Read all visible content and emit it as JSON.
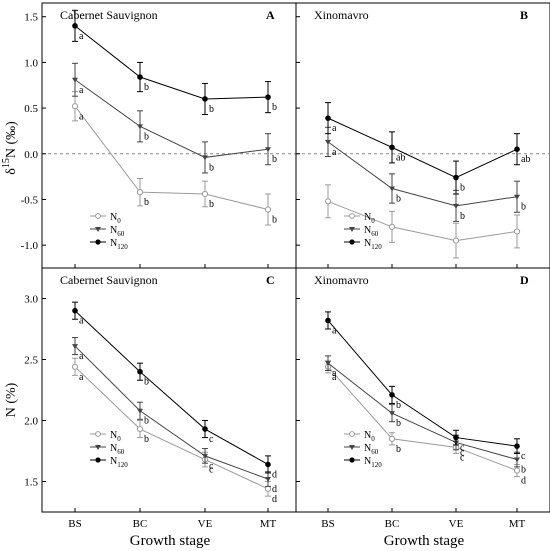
{
  "figure": {
    "y_top_label_main": "δ",
    "y_top_label_sup": "15",
    "y_top_label_rest": "N (‰)",
    "y_bottom_label": "N (%)",
    "x_label_left": "Growth stage",
    "x_label_right": "Growth stage",
    "legend": [
      {
        "key": "N0",
        "base": "N",
        "sub": "0"
      },
      {
        "key": "N60",
        "base": "N",
        "sub": "60"
      },
      {
        "key": "N120",
        "base": "N",
        "sub": "120"
      }
    ]
  },
  "colors": {
    "N0": "#9a9a9a",
    "N60": "#444444",
    "N120": "#000000"
  },
  "chart_data": [
    {
      "id": "A",
      "panel_letter": "A",
      "cultivar": "Cabernet Sauvignon",
      "type": "line",
      "categories": [
        "BS",
        "BC",
        "VE",
        "MT"
      ],
      "ylim": [
        -1.25,
        1.65
      ],
      "yticks": [
        -1.0,
        -0.5,
        0.0,
        0.5,
        1.0,
        1.5
      ],
      "ytick_labels": [
        "-1.0",
        "-0.5",
        "0.0",
        "0.5",
        "1.0",
        "1.5"
      ],
      "zero_line": true,
      "series": [
        {
          "key": "N0",
          "values": [
            0.52,
            -0.42,
            -0.44,
            -0.61
          ],
          "errors": [
            0.16,
            0.15,
            0.14,
            0.17
          ],
          "letters": [
            "a",
            "b",
            "b",
            "b"
          ]
        },
        {
          "key": "N60",
          "values": [
            0.81,
            0.3,
            -0.04,
            0.05
          ],
          "errors": [
            0.18,
            0.17,
            0.17,
            0.17
          ],
          "letters": [
            "a",
            "b",
            "b",
            "b"
          ]
        },
        {
          "key": "N120",
          "values": [
            1.4,
            0.84,
            0.6,
            0.62
          ],
          "errors": [
            0.17,
            0.16,
            0.17,
            0.17
          ],
          "letters": [
            "a",
            "b",
            "b",
            "b"
          ]
        }
      ]
    },
    {
      "id": "B",
      "panel_letter": "B",
      "cultivar": "Xinomavro",
      "type": "line",
      "categories": [
        "BS",
        "BC",
        "VE",
        "MT"
      ],
      "ylim": [
        -1.25,
        1.65
      ],
      "yticks": [
        -1.0,
        -0.5,
        0.0,
        0.5,
        1.0,
        1.5
      ],
      "ytick_labels": [],
      "zero_line": true,
      "series": [
        {
          "key": "N0",
          "values": [
            -0.52,
            -0.8,
            -0.95,
            -0.85
          ],
          "errors": [
            0.18,
            0.17,
            0.19,
            0.18
          ],
          "letters": []
        },
        {
          "key": "N60",
          "values": [
            0.13,
            -0.38,
            -0.57,
            -0.47
          ],
          "errors": [
            0.16,
            0.16,
            0.17,
            0.17
          ],
          "letters": [
            "a",
            "b",
            "b",
            "b"
          ]
        },
        {
          "key": "N120",
          "values": [
            0.39,
            0.07,
            -0.26,
            0.05
          ],
          "errors": [
            0.17,
            0.17,
            0.18,
            0.17
          ],
          "letters": [
            "a",
            "ab",
            "b",
            "ab"
          ]
        }
      ]
    },
    {
      "id": "C",
      "panel_letter": "C",
      "cultivar": "Cabernet Sauvignon",
      "type": "line",
      "categories": [
        "BS",
        "BC",
        "VE",
        "MT"
      ],
      "ylim": [
        1.25,
        3.25
      ],
      "yticks": [
        1.5,
        2.0,
        2.5,
        3.0
      ],
      "ytick_labels": [
        "1.5",
        "2.0",
        "2.5",
        "3.0"
      ],
      "zero_line": false,
      "series": [
        {
          "key": "N0",
          "values": [
            2.44,
            1.93,
            1.68,
            1.44
          ],
          "errors": [
            0.07,
            0.07,
            0.06,
            0.06
          ],
          "letters": [
            "a",
            "b",
            "c",
            "d"
          ]
        },
        {
          "key": "N60",
          "values": [
            2.61,
            2.08,
            1.71,
            1.52
          ],
          "errors": [
            0.07,
            0.07,
            0.06,
            0.06
          ],
          "letters": [
            "a",
            "b",
            "c",
            "d"
          ]
        },
        {
          "key": "N120",
          "values": [
            2.9,
            2.4,
            1.93,
            1.64
          ],
          "errors": [
            0.07,
            0.07,
            0.07,
            0.07
          ],
          "letters": [
            "a",
            "b",
            "c",
            "d"
          ]
        }
      ]
    },
    {
      "id": "D",
      "panel_letter": "D",
      "cultivar": "Xinomavro",
      "type": "line",
      "categories": [
        "BS",
        "BC",
        "VE",
        "MT"
      ],
      "ylim": [
        1.25,
        3.25
      ],
      "yticks": [
        1.5,
        2.0,
        2.5,
        3.0
      ],
      "ytick_labels": [],
      "zero_line": false,
      "series": [
        {
          "key": "N0",
          "values": [
            2.44,
            1.85,
            1.78,
            1.59
          ],
          "errors": [
            0.05,
            0.05,
            0.05,
            0.05
          ],
          "letters": [
            "a",
            "b",
            "c",
            "d"
          ]
        },
        {
          "key": "N60",
          "values": [
            2.47,
            2.06,
            1.82,
            1.68
          ],
          "errors": [
            0.06,
            0.07,
            0.06,
            0.06
          ],
          "letters": [
            "a",
            "b",
            "c",
            "b"
          ]
        },
        {
          "key": "N120",
          "values": [
            2.82,
            2.21,
            1.86,
            1.79
          ],
          "errors": [
            0.07,
            0.07,
            0.06,
            0.06
          ],
          "letters": [
            "a",
            "b",
            "c",
            "c"
          ]
        }
      ]
    }
  ]
}
